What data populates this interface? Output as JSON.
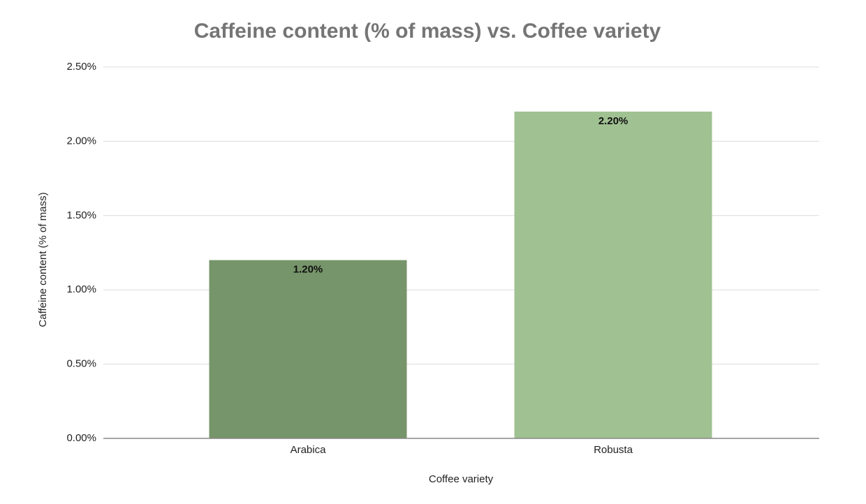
{
  "chart_data": {
    "type": "bar",
    "title": "Caffeine content (% of mass) vs. Coffee variety",
    "x_label": "Coffee variety",
    "y_label": "Caffeine content (% of mass)",
    "categories": [
      "Arabica",
      "Robusta"
    ],
    "values": [
      1.2,
      2.2
    ],
    "value_labels": [
      "1.20%",
      "2.20%"
    ],
    "colors": [
      "#77956a",
      "#a0c192"
    ],
    "ylim": [
      0,
      2.5
    ],
    "yticks": [
      {
        "value": 0,
        "label": "0.00%"
      },
      {
        "value": 0.5,
        "label": "0.50%"
      },
      {
        "value": 1,
        "label": "1.00%"
      },
      {
        "value": 1.5,
        "label": "1.50%"
      },
      {
        "value": 2,
        "label": "2.00%"
      },
      {
        "value": 2.5,
        "label": "2.50%"
      }
    ],
    "grid": true
  }
}
